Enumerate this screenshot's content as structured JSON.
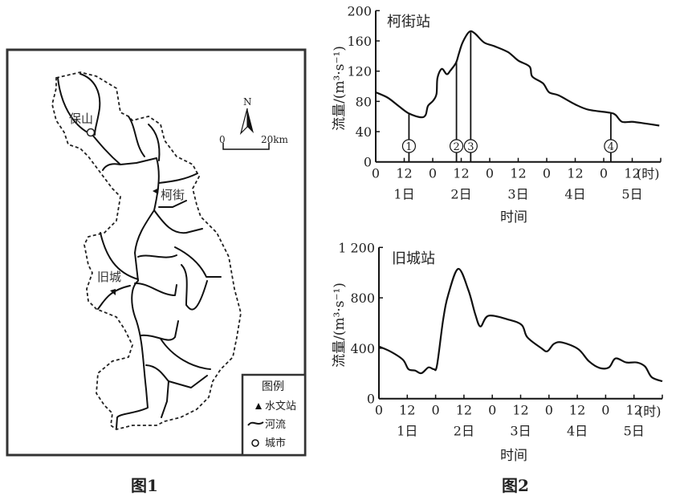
{
  "figure1": {
    "caption": "图1",
    "places": {
      "baoshan": "保山",
      "kejie": "柯街",
      "jiucheng": "旧城"
    },
    "compass": {
      "north": "N"
    },
    "scale": {
      "start": "0",
      "end": "20km"
    },
    "legend": {
      "title": "图例",
      "items": [
        {
          "icon": "triangle-icon",
          "label": "水文站"
        },
        {
          "icon": "river-icon",
          "label": "河流"
        },
        {
          "icon": "circle-icon",
          "label": "城市"
        }
      ]
    }
  },
  "figure2": {
    "caption": "图2"
  },
  "chart_data": [
    {
      "type": "line",
      "title": "柯街站",
      "ylabel": "流量/(m³·s⁻¹)",
      "xlabel": "时间",
      "x_unit": "(时)",
      "xlim": [
        0,
        120
      ],
      "ylim": [
        0,
        200
      ],
      "x_tick_labels": [
        "0",
        "12",
        "0",
        "12",
        "0",
        "12",
        "0",
        "12",
        "0",
        "12"
      ],
      "day_labels": [
        "1日",
        "2日",
        "3日",
        "4日",
        "5日"
      ],
      "y_tick_labels": [
        "0",
        "40",
        "80",
        "120",
        "160",
        "200"
      ],
      "y_ticks": [
        0,
        40,
        80,
        120,
        160,
        200
      ],
      "grid": false,
      "series": [
        {
          "x": [
            0,
            5,
            9.6,
            14,
            19,
            21,
            22,
            24.2,
            25.6,
            26,
            27.8,
            29.9,
            31.5,
            33.8,
            35,
            36.6,
            39.4,
            41.7,
            45.6,
            50,
            55.8,
            60,
            64.8,
            65.9,
            70.4,
            73,
            77,
            84,
            89.6,
            98.6,
            101,
            103.7,
            108,
            113,
            119.4
          ],
          "y": [
            92,
            85,
            74,
            64,
            59,
            62,
            74,
            81,
            90,
            111,
            123,
            116,
            121,
            131,
            143,
            158,
            172,
            170,
            158,
            153,
            145,
            134,
            126,
            113,
            104,
            92,
            88,
            76,
            69,
            65,
            62,
            53,
            53,
            51,
            48
          ]
        }
      ],
      "markers": [
        {
          "label": "①",
          "x": 14
        },
        {
          "label": "②",
          "x": 34
        },
        {
          "label": "③",
          "x": 40
        },
        {
          "label": "④",
          "x": 99
        }
      ]
    },
    {
      "type": "line",
      "title": "旧城站",
      "ylabel": "流量/(m³·s⁻¹)",
      "xlabel": "时间",
      "x_unit": "(时)",
      "xlim": [
        0,
        120
      ],
      "ylim": [
        0,
        1200
      ],
      "x_tick_labels": [
        "0",
        "12",
        "0",
        "12",
        "0",
        "12",
        "0",
        "12",
        "0",
        "12"
      ],
      "day_labels": [
        "1日",
        "2日",
        "3日",
        "4日",
        "5日"
      ],
      "y_tick_labels": [
        "0",
        "400",
        "800",
        "1 200"
      ],
      "y_ticks": [
        0,
        400,
        800,
        1200
      ],
      "grid": false,
      "series": [
        {
          "x": [
            0,
            5.1,
            10.2,
            12.5,
            15.3,
            18,
            21,
            23.2,
            24.6,
            27.2,
            29.4,
            33.6,
            37.9,
            40.8,
            43,
            46.4,
            54.9,
            60.5,
            62.8,
            68.5,
            71.3,
            74.1,
            77.6,
            84.4,
            88.9,
            93.4,
            97.4,
            100.2,
            104.8,
            109.3,
            112.7,
            115.5,
            120
          ],
          "y": [
            414,
            372,
            308,
            234,
            223,
            202,
            248,
            234,
            265,
            627,
            828,
            1030,
            860,
            669,
            573,
            658,
            627,
            584,
            488,
            404,
            376,
            435,
            446,
            393,
            297,
            244,
            248,
            319,
            287,
            287,
            255,
            170,
            138
          ]
        }
      ]
    }
  ]
}
